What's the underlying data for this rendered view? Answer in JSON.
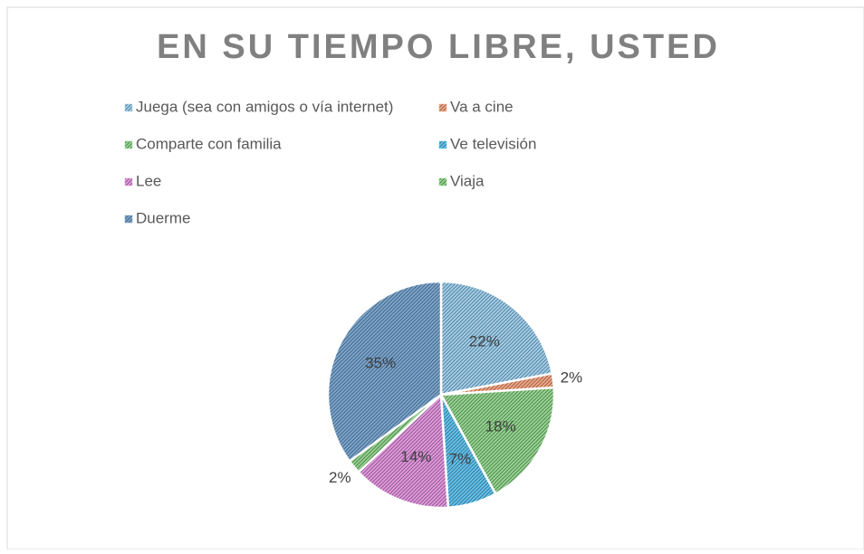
{
  "chart_data": {
    "type": "pie",
    "title": "EN SU TIEMPO LIBRE, USTED",
    "categories": [
      "Juega (sea con amigos o vía internet)",
      "Va a cine",
      "Comparte con familia",
      "Ve televisión",
      "Lee",
      "Viaja",
      "Duerme"
    ],
    "values": [
      22,
      2,
      18,
      7,
      14,
      2,
      35
    ],
    "value_labels": [
      "22%",
      "2%",
      "18%",
      "7%",
      "14%",
      "2%",
      "35%"
    ],
    "colors": [
      "#9fd0ee",
      "#f4a582",
      "#93d68f",
      "#62c3ee",
      "#e497e0",
      "#92d48c",
      "#7aa6cf"
    ],
    "legend": "top"
  }
}
